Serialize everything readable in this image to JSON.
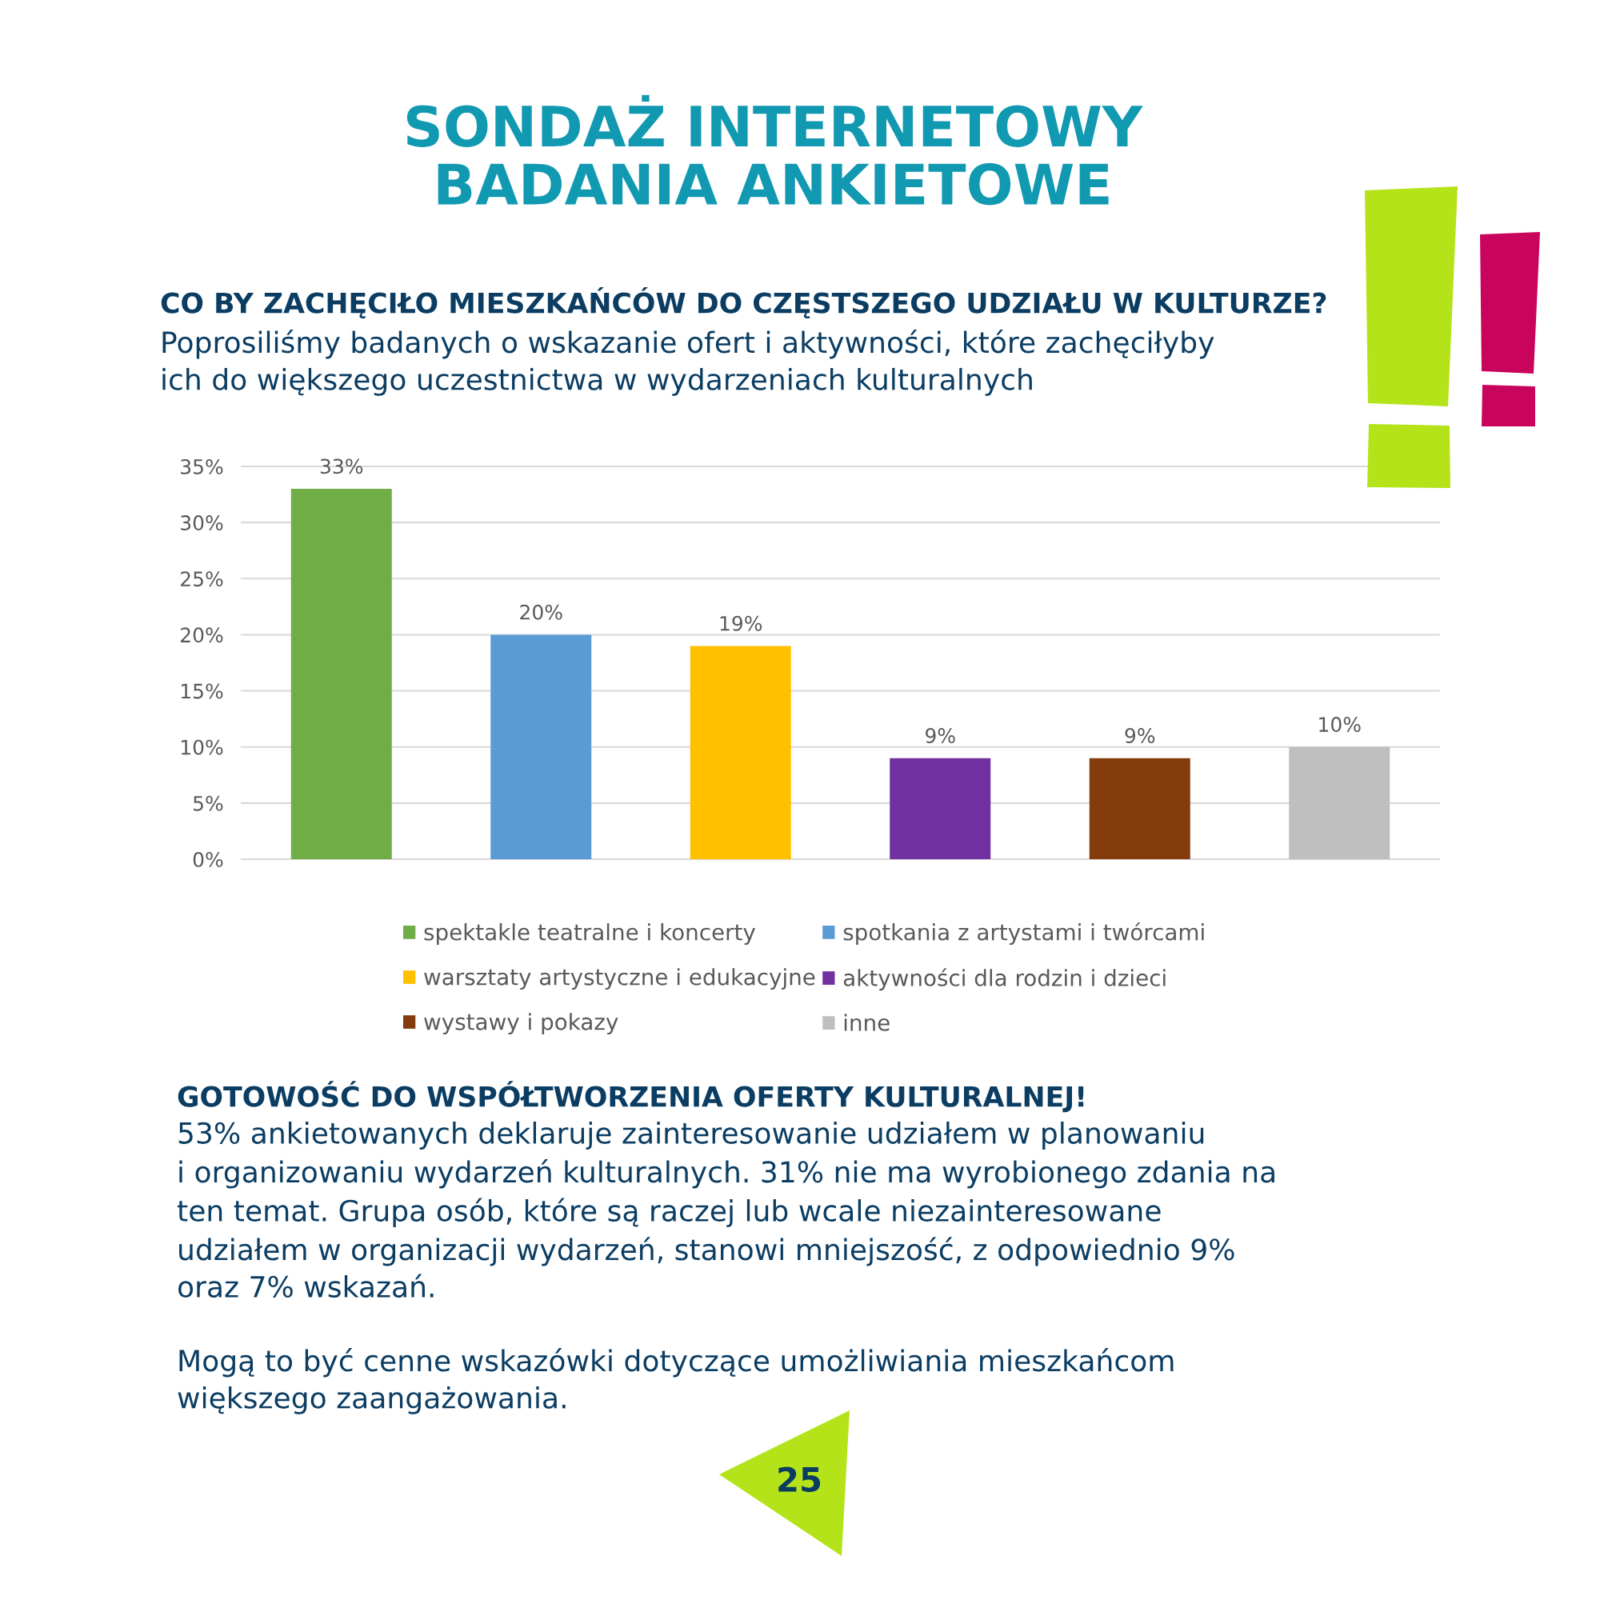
{
  "chart_data": {
    "type": "bar",
    "title": "SONDAŻ INTERNETOWY\nBADANIA ANKIETOWE",
    "subtitle": "CO BY ZACHĘCIŁO MIESZKAŃCÓW DO CZĘSTSZEGO UDZIAŁU W KULTURZE?",
    "annotations": [
      "Poprosiliśmy badanych o wskazanie ofert i aktywności, które zachęciłyby\nich do większego uczestnictwa w wydarzeniach kulturalnych",
      "GOTOWOŚĆ DO WSPÓŁTWORZENIA OFERTY KULTURALNEJ!",
      "53% ankietowanych deklaruje zainteresowanie udziałem w planowaniu\ni organizowaniu wydarzeń kulturalnych. 31% nie ma wyrobionego zdania na\nten temat. Grupa osób, które są raczej lub wcale niezainteresowane\nudziałem w organizacji wydarzeń, stanowi mniejszość, z odpowiednio 9%\noraz 7% wskazań.",
      "Mogą to być cenne wskazówki dotyczące umożliwiania mieszkańcom\nwiększego zaangażowania.",
      "25"
    ],
    "categories": [
      null
    ],
    "series": [
      {
        "name": "spektakle teatralne i koncerty",
        "color": "#70ad47",
        "values": [
          33
        ],
        "value_labels": [
          "33%"
        ]
      },
      {
        "name": "spotkania z artystami i twórcami",
        "color": "#5b9bd5",
        "values": [
          20
        ],
        "value_labels": [
          "20%"
        ]
      },
      {
        "name": "warsztaty artystyczne i edukacyjne",
        "color": "#ffc000",
        "values": [
          19
        ],
        "value_labels": [
          "19%"
        ]
      },
      {
        "name": "aktywności dla rodzin i dzieci",
        "color": "#7030a0",
        "values": [
          9
        ],
        "value_labels": [
          "9%"
        ]
      },
      {
        "name": "wystawy i pokazy",
        "color": "#843c0c",
        "values": [
          9
        ],
        "value_labels": [
          "9%"
        ]
      },
      {
        "name": "inne",
        "color": "#bfbfbf",
        "values": [
          10
        ],
        "value_labels": [
          "10%"
        ]
      }
    ],
    "ylim": [
      0,
      35
    ],
    "yticks": [
      {
        "value": 0,
        "label": "0%"
      },
      {
        "value": 5,
        "label": "5%"
      },
      {
        "value": 10,
        "label": "10%"
      },
      {
        "value": 15,
        "label": "15%"
      },
      {
        "value": 20,
        "label": "20%"
      },
      {
        "value": 25,
        "label": "25%"
      },
      {
        "value": 30,
        "label": "30%"
      },
      {
        "value": 35,
        "label": "35%"
      }
    ],
    "grid": "y",
    "legend": "bottom"
  }
}
